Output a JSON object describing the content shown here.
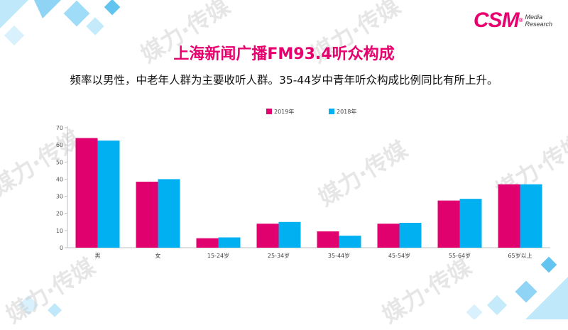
{
  "title": "上海新闻广播FM93.4听众构成",
  "subtitle": "频率以男性，中老年人群为主要收听人群。35-44岁中青年听众构成比例同比有所上升。",
  "logo": {
    "main": "CSM",
    "reg": "®",
    "line1": "Media",
    "line2": "Research"
  },
  "watermark": "媒力·传媒",
  "colors": {
    "accent": "#e8006f",
    "series2019": "#e0006e",
    "series2018": "#00b0f0"
  },
  "chart_data": {
    "type": "bar",
    "categories": [
      "男",
      "女",
      "15-24岁",
      "25-34岁",
      "35-44岁",
      "45-54岁",
      "55-64岁",
      "65岁以上"
    ],
    "series": [
      {
        "name": "2019年",
        "values": [
          64,
          38.5,
          5.5,
          14,
          9.5,
          14,
          27.5,
          37
        ]
      },
      {
        "name": "2018年",
        "values": [
          62.5,
          40,
          6,
          15,
          7,
          14.5,
          28.5,
          37
        ]
      }
    ],
    "yticks": [
      0,
      10,
      20,
      30,
      40,
      50,
      60,
      70
    ],
    "ylim": [
      0,
      70
    ],
    "grid": false,
    "legend": "top-center"
  }
}
